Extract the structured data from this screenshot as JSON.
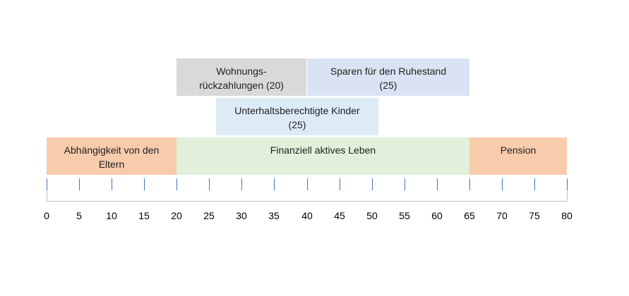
{
  "diagram": {
    "axis": {
      "min": 0,
      "max": 80,
      "step": 5,
      "tick_labels": [
        "0",
        "5",
        "10",
        "15",
        "20",
        "25",
        "30",
        "35",
        "40",
        "45",
        "50",
        "55",
        "60",
        "65",
        "70",
        "75",
        "80"
      ]
    },
    "blocks": [
      {
        "id": "abhaengigkeit",
        "label": "Abhängigkeit von den\nEltern",
        "start": 0,
        "end": 20,
        "row": "bottom",
        "color": "#f8cbad"
      },
      {
        "id": "finanziell-aktiv",
        "label": "Finanziell aktives Leben",
        "start": 20,
        "end": 65,
        "row": "bottom",
        "color": "#e2efda"
      },
      {
        "id": "pension",
        "label": "Pension",
        "start": 65,
        "end": 80,
        "row": "bottom",
        "color": "#f8cbad"
      },
      {
        "id": "unterhalt",
        "label": "Unterhaltsberechtigte Kinder\n(25)",
        "start": 26,
        "end": 51,
        "row": "middle",
        "color": "#ddebf7"
      },
      {
        "id": "wohnung",
        "label": "Wohnungs-\nrückzahlungen (20)",
        "start": 20,
        "end": 40,
        "row": "top",
        "color": "#d9d9d9"
      },
      {
        "id": "sparen",
        "label": "Sparen für den Ruhestand\n(25)",
        "start": 40,
        "end": 65,
        "row": "top",
        "color": "#dae3f3"
      }
    ]
  }
}
